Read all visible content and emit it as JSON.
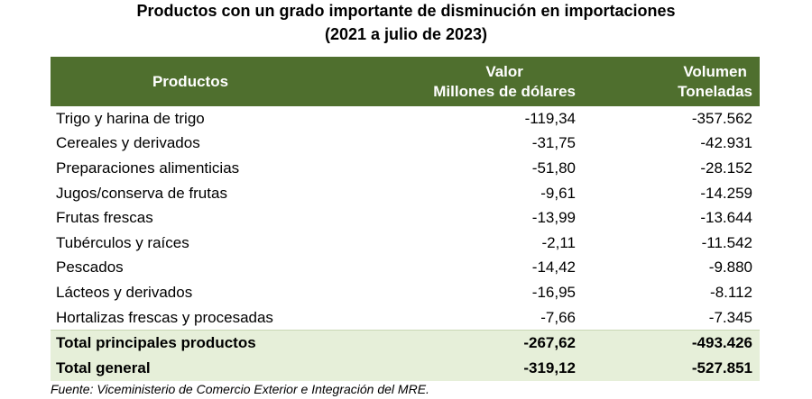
{
  "title_line1": "Productos con un grado importante de disminución en importaciones",
  "title_line2": "(2021 a julio de 2023)",
  "headers": {
    "producto": "Productos",
    "valor_line1": "Valor",
    "valor_line2": "Millones de dólares",
    "volumen_line1": "Volumen",
    "volumen_line2": "Toneladas"
  },
  "rows": [
    {
      "producto": "Trigo y harina de trigo",
      "valor": "-119,34",
      "volumen": "-357.562"
    },
    {
      "producto": "Cereales y derivados",
      "valor": "-31,75",
      "volumen": "-42.931"
    },
    {
      "producto": "Preparaciones alimenticias",
      "valor": "-51,80",
      "volumen": "-28.152"
    },
    {
      "producto": "Jugos/conserva de frutas",
      "valor": "-9,61",
      "volumen": "-14.259"
    },
    {
      "producto": "Frutas frescas",
      "valor": "-13,99",
      "volumen": "-13.644"
    },
    {
      "producto": "Tubérculos y raíces",
      "valor": "-2,11",
      "volumen": "-11.542"
    },
    {
      "producto": "Pescados",
      "valor": "-14,42",
      "volumen": "-9.880"
    },
    {
      "producto": "Lácteos y derivados",
      "valor": "-16,95",
      "volumen": "-8.112"
    },
    {
      "producto": "Hortalizas frescas y procesadas",
      "valor": "-7,66",
      "volumen": "-7.345"
    }
  ],
  "totals": [
    {
      "producto": "Total principales productos",
      "valor": "-267,62",
      "volumen": "-493.426"
    },
    {
      "producto": "Total general",
      "valor": "-319,12",
      "volumen": "-527.851"
    }
  ],
  "source": "Fuente: Viceministerio de Comercio Exterior e Integración del MRE.",
  "colors": {
    "header_bg": "#4f6f2e",
    "header_text": "#ffffff",
    "total_bg": "#e6efd9"
  }
}
